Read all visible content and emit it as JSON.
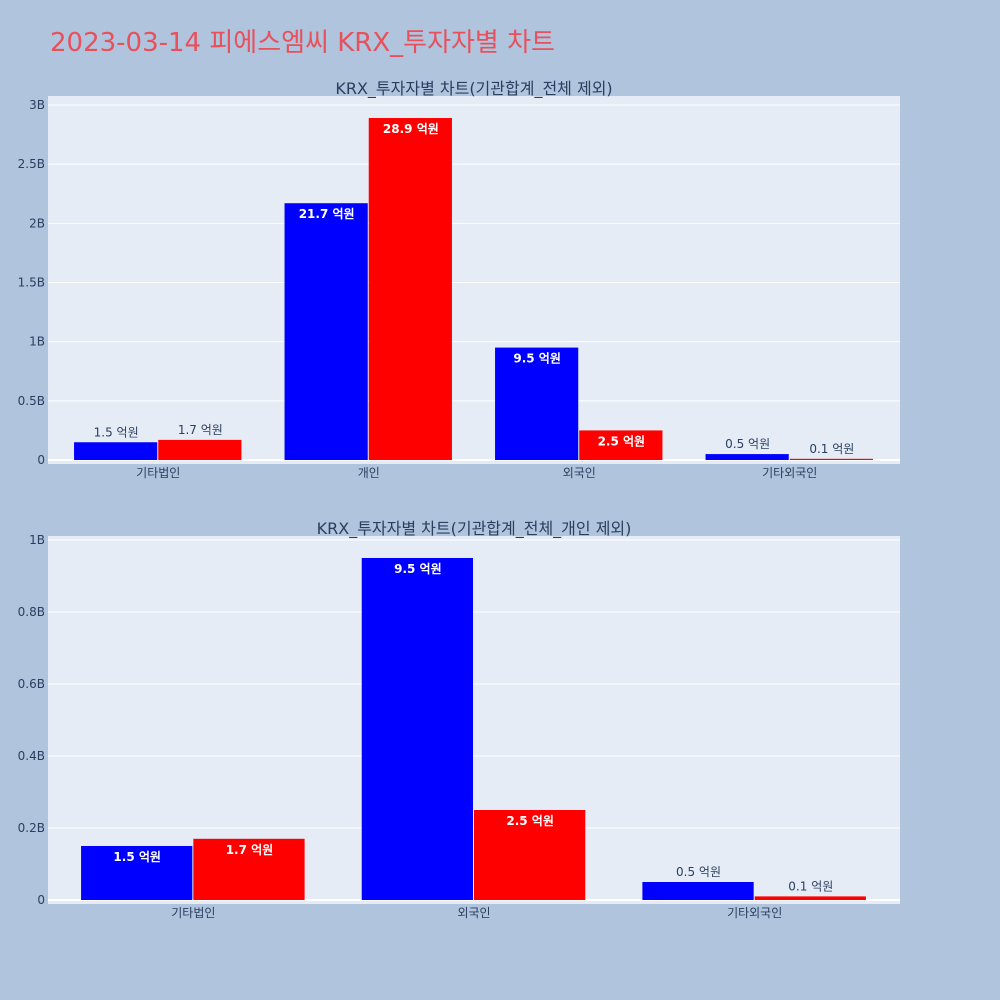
{
  "page": {
    "title": "2023-03-14 피에스엠씨 KRX_투자자별 차트",
    "colors": {
      "background": "#b0c4de",
      "plot_bg": "#e5ecf6",
      "title": "#e8505b",
      "buy": "#0000ff",
      "sell": "#ff0000"
    }
  },
  "chart_data": [
    {
      "type": "bar",
      "title": "KRX_투자자별 차트(기관합계_전체 제외)",
      "categories": [
        "기타법인",
        "개인",
        "외국인",
        "기타외국인"
      ],
      "series": [
        {
          "color": "#0000ff",
          "values": [
            150000000,
            2170000000,
            950000000,
            50000000
          ],
          "labels": [
            "1.5 억원",
            "21.7 억원",
            "9.5 억원",
            "0.5 억원"
          ]
        },
        {
          "color": "#ff0000",
          "values": [
            170000000,
            2890000000,
            250000000,
            10000000
          ],
          "labels": [
            "1.7 억원",
            "28.9 억원",
            "2.5 억원",
            "0.1 억원"
          ]
        }
      ],
      "ylim": [
        0,
        3000000000
      ],
      "yticks": [
        0,
        500000000,
        1000000000,
        1500000000,
        2000000000,
        2500000000,
        3000000000
      ],
      "ytick_labels": [
        "0",
        "0.5B",
        "1B",
        "1.5B",
        "2B",
        "2.5B",
        "3B"
      ],
      "grid": true,
      "legend": "none"
    },
    {
      "type": "bar",
      "title": "KRX_투자자별 차트(기관합계_전체_개인 제외)",
      "categories": [
        "기타법인",
        "외국인",
        "기타외국인"
      ],
      "series": [
        {
          "color": "#0000ff",
          "values": [
            150000000,
            950000000,
            50000000
          ],
          "labels": [
            "1.5 억원",
            "9.5 억원",
            "0.5 억원"
          ]
        },
        {
          "color": "#ff0000",
          "values": [
            170000000,
            250000000,
            10000000
          ],
          "labels": [
            "1.7 억원",
            "2.5 억원",
            "0.1 억원"
          ]
        }
      ],
      "ylim": [
        0,
        1000000000
      ],
      "yticks": [
        0,
        200000000,
        400000000,
        600000000,
        800000000,
        1000000000
      ],
      "ytick_labels": [
        "0",
        "0.2B",
        "0.4B",
        "0.6B",
        "0.8B",
        "1B"
      ],
      "grid": true,
      "legend": "none"
    }
  ]
}
